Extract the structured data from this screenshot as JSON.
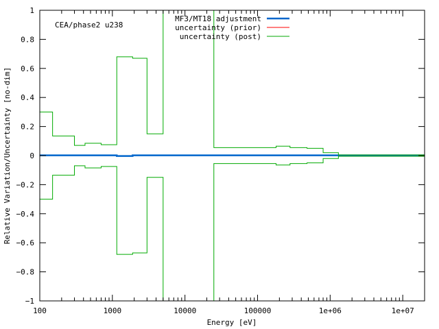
{
  "chart_data": {
    "type": "line",
    "title": "",
    "annotation": "CEA/phase2 u238",
    "xlabel": "Energy [eV]",
    "ylabel": "Relative Variation/Uncertainty [no-dim]",
    "xscale": "log",
    "xlim": [
      100,
      20000000
    ],
    "ylim": [
      -1,
      1
    ],
    "xticks": [
      {
        "v": 100,
        "label": "100"
      },
      {
        "v": 1000,
        "label": "1000"
      },
      {
        "v": 10000,
        "label": "10000"
      },
      {
        "v": 100000,
        "label": "100000"
      },
      {
        "v": 1000000,
        "label": "1e+06"
      },
      {
        "v": 10000000,
        "label": "1e+07"
      }
    ],
    "yticks": [
      {
        "v": 1,
        "label": "1"
      },
      {
        "v": 0.8,
        "label": "0.8"
      },
      {
        "v": 0.6,
        "label": "0.6"
      },
      {
        "v": 0.4,
        "label": "0.4"
      },
      {
        "v": 0.2,
        "label": "0.2"
      },
      {
        "v": 0,
        "label": "0"
      },
      {
        "v": -0.2,
        "label": "−0.2"
      },
      {
        "v": -0.4,
        "label": "−0.4"
      },
      {
        "v": -0.6,
        "label": "−0.6"
      },
      {
        "v": -0.8,
        "label": "−0.8"
      },
      {
        "v": -1,
        "label": "−1"
      }
    ],
    "grid": false,
    "legend_position": "top-right",
    "series": [
      {
        "name": "MF3/MT18 adjustment",
        "color": "#0066cc",
        "style": "step-bold",
        "edges": [
          100,
          1150,
          1900,
          20000000
        ],
        "values": [
          0.002,
          -0.003,
          0.002
        ]
      },
      {
        "name": "uncertainty (prior)",
        "color": "#ff0000",
        "style": "symmetric-step",
        "edges": [],
        "values": []
      },
      {
        "name": "uncertainty (post)",
        "color": "#00aa00",
        "style": "symmetric-step",
        "edges": [
          100,
          150,
          300,
          420,
          700,
          1150,
          1900,
          3000,
          5000,
          7000,
          10000,
          13000,
          25000,
          180000,
          280000,
          480000,
          800000,
          1300000,
          20000000
        ],
        "values": [
          0.3,
          0.135,
          0.07,
          0.085,
          0.075,
          0.68,
          0.67,
          0.15,
          1.0,
          1.0,
          1.0,
          1.0,
          0.055,
          0.065,
          0.055,
          0.05,
          0.02,
          0.005
        ]
      }
    ]
  }
}
